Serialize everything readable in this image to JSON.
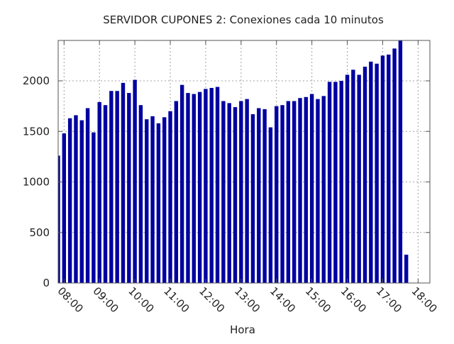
{
  "chart_data": {
    "type": "bar",
    "title": "SERVIDOR CUPONES 2: Conexiones cada 10 minutos",
    "xlabel": "Hora",
    "ylabel": "",
    "ylim": [
      0,
      2400
    ],
    "xlim": [
      "07:50",
      "18:20"
    ],
    "x_ticks": [
      "08:00",
      "09:00",
      "10:00",
      "11:00",
      "12:00",
      "13:00",
      "14:00",
      "15:00",
      "16:00",
      "17:00",
      "18:00"
    ],
    "y_ticks": [
      0,
      500,
      1000,
      1500,
      2000
    ],
    "grid": true,
    "bar_color": "#0000a0",
    "x": [
      "07:50",
      "08:00",
      "08:10",
      "08:20",
      "08:30",
      "08:40",
      "08:50",
      "09:00",
      "09:10",
      "09:20",
      "09:30",
      "09:40",
      "09:50",
      "10:00",
      "10:10",
      "10:20",
      "10:30",
      "10:40",
      "10:50",
      "11:00",
      "11:10",
      "11:20",
      "11:30",
      "11:40",
      "11:50",
      "12:00",
      "12:10",
      "12:20",
      "12:30",
      "12:40",
      "12:50",
      "13:00",
      "13:10",
      "13:20",
      "13:30",
      "13:40",
      "13:50",
      "14:00",
      "14:10",
      "14:20",
      "14:30",
      "14:40",
      "14:50",
      "15:00",
      "15:10",
      "15:20",
      "15:30",
      "15:40",
      "15:50",
      "16:00",
      "16:10",
      "16:20",
      "16:30",
      "16:40",
      "16:50",
      "17:00",
      "17:10",
      "17:20",
      "17:30",
      "17:40",
      "17:50"
    ],
    "values": [
      1260,
      1480,
      1630,
      1660,
      1610,
      1730,
      1490,
      1790,
      1760,
      1900,
      1900,
      1980,
      1880,
      2010,
      1760,
      1620,
      1650,
      1580,
      1640,
      1700,
      1800,
      1960,
      1880,
      1870,
      1890,
      1920,
      1930,
      1940,
      1800,
      1780,
      1740,
      1800,
      1820,
      1670,
      1730,
      1720,
      1540,
      1750,
      1760,
      1800,
      1800,
      1830,
      1840,
      1870,
      1820,
      1850,
      1990,
      1990,
      2000,
      2060,
      2110,
      2060,
      2140,
      2190,
      2170,
      2250,
      2260,
      2320,
      2400,
      280,
      0
    ]
  }
}
